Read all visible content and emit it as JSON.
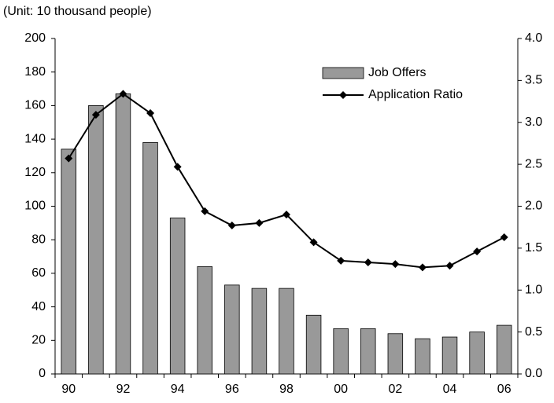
{
  "chart_data": {
    "type": "bar",
    "note": "(Unit: 10 thousand people)",
    "categories": [
      "90",
      null,
      "92",
      null,
      "94",
      null,
      "96",
      null,
      "98",
      null,
      "00",
      null,
      "02",
      null,
      "04",
      null,
      "06"
    ],
    "series": [
      {
        "name": "Job Offers",
        "type": "bar",
        "color": "#999999",
        "values": [
          134,
          160,
          167,
          138,
          93,
          64,
          53,
          51,
          51,
          35,
          27,
          27,
          24,
          21,
          22,
          25,
          29
        ]
      },
      {
        "name": "Application Ratio",
        "type": "line",
        "axis": "y2",
        "color": "#000000",
        "values": [
          2.57,
          3.09,
          3.34,
          3.11,
          2.47,
          1.94,
          1.77,
          1.8,
          1.9,
          1.57,
          1.35,
          1.33,
          1.31,
          1.27,
          1.29,
          1.46,
          1.63
        ]
      }
    ],
    "ylim": [
      0,
      200
    ],
    "yticks": [
      0,
      20,
      40,
      60,
      80,
      100,
      120,
      140,
      160,
      180,
      200
    ],
    "y2lim": [
      0,
      4
    ],
    "y2ticks": [
      {
        "value": 0,
        "label": "0.0"
      },
      {
        "value": 0.5,
        "label": "0.5"
      },
      {
        "value": 1,
        "label": "1.0"
      },
      {
        "value": 1.5,
        "label": "1.5"
      },
      {
        "value": 2,
        "label": "2.0"
      },
      {
        "value": 2.5,
        "label": "2.5"
      },
      {
        "value": 3,
        "label": "3.0"
      },
      {
        "value": 3.5,
        "label": "3.5"
      },
      {
        "value": 4,
        "label": "4.0"
      }
    ],
    "grid": false,
    "legend": "top-right"
  }
}
